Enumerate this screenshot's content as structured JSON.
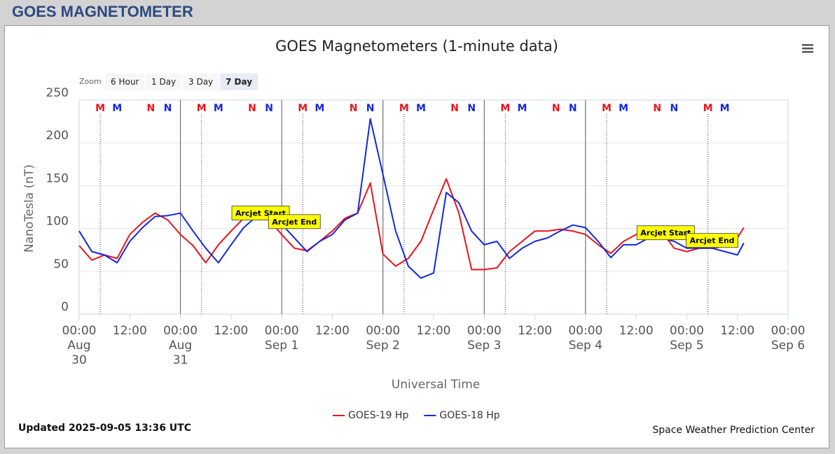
{
  "header": {
    "title": "GOES MAGNETOMETER"
  },
  "zoom": {
    "label": "Zoom",
    "buttons": [
      "6 Hour",
      "1 Day",
      "3 Day",
      "7 Day"
    ],
    "selected_index": 3
  },
  "chart_data": {
    "type": "line",
    "title": "GOES Magnetometers (1-minute data)",
    "xlabel": "Universal Time",
    "ylabel": "NanoTesla (nT)",
    "x": [
      "Aug 30 00:00",
      "Aug 30 03:00",
      "Aug 30 06:00",
      "Aug 30 09:00",
      "Aug 30 12:00",
      "Aug 30 15:00",
      "Aug 30 18:00",
      "Aug 30 21:00",
      "Aug 31 00:00",
      "Aug 31 03:00",
      "Aug 31 06:00",
      "Aug 31 09:00",
      "Aug 31 12:00",
      "Aug 31 15:00",
      "Aug 31 18:00",
      "Aug 31 21:00",
      "Sep 1 00:00",
      "Sep 1 03:00",
      "Sep 1 06:00",
      "Sep 1 09:00",
      "Sep 1 12:00",
      "Sep 1 15:00",
      "Sep 1 18:00",
      "Sep 1 21:00",
      "Sep 2 00:00",
      "Sep 2 03:00",
      "Sep 2 06:00",
      "Sep 2 09:00",
      "Sep 2 12:00",
      "Sep 2 15:00",
      "Sep 2 18:00",
      "Sep 2 21:00",
      "Sep 3 00:00",
      "Sep 3 03:00",
      "Sep 3 06:00",
      "Sep 3 09:00",
      "Sep 3 12:00",
      "Sep 3 15:00",
      "Sep 3 18:00",
      "Sep 3 21:00",
      "Sep 4 00:00",
      "Sep 4 03:00",
      "Sep 4 06:00",
      "Sep 4 09:00",
      "Sep 4 12:00",
      "Sep 4 15:00",
      "Sep 4 18:00",
      "Sep 4 21:00",
      "Sep 5 00:00",
      "Sep 5 03:00",
      "Sep 5 06:00",
      "Sep 5 09:00",
      "Sep 5 12:00",
      "Sep 5 13:30"
    ],
    "series": [
      {
        "name": "GOES-19 Hp",
        "color": "#e8141c",
        "values": [
          80,
          63,
          69,
          65,
          93,
          107,
          118,
          110,
          93,
          80,
          60,
          81,
          97,
          112,
          114,
          110,
          93,
          77,
          74,
          85,
          97,
          112,
          118,
          153,
          70,
          56,
          65,
          85,
          122,
          158,
          118,
          52,
          52,
          54,
          73,
          85,
          97,
          97,
          99,
          97,
          93,
          81,
          71,
          85,
          93,
          97,
          97,
          77,
          73,
          77,
          77,
          79,
          89,
          101
        ]
      },
      {
        "name": "GOES-18 Hp",
        "color": "#1428dc",
        "values": [
          97,
          73,
          69,
          60,
          85,
          101,
          114,
          115,
          118,
          97,
          77,
          60,
          81,
          101,
          114,
          114,
          105,
          89,
          73,
          85,
          93,
          110,
          118,
          228,
          163,
          97,
          56,
          42,
          48,
          142,
          130,
          97,
          81,
          85,
          65,
          77,
          85,
          89,
          97,
          104,
          101,
          85,
          66,
          81,
          81,
          89,
          89,
          85,
          77,
          77,
          77,
          73,
          69,
          83
        ]
      }
    ],
    "xlim": [
      "Aug 30 00:00",
      "Sep 6 00:00"
    ],
    "xticks": [
      {
        "value": "Aug 30 00:00",
        "label": "00:00\nAug\n30"
      },
      {
        "value": "Aug 30 12:00",
        "label": "12:00"
      },
      {
        "value": "Aug 31 00:00",
        "label": "00:00\nAug\n31"
      },
      {
        "value": "Aug 31 12:00",
        "label": "12:00"
      },
      {
        "value": "Sep 1 00:00",
        "label": "00:00\nSep 1"
      },
      {
        "value": "Sep 1 12:00",
        "label": "12:00"
      },
      {
        "value": "Sep 2 00:00",
        "label": "00:00\nSep 2"
      },
      {
        "value": "Sep 2 12:00",
        "label": "12:00"
      },
      {
        "value": "Sep 3 00:00",
        "label": "00:00\nSep 3"
      },
      {
        "value": "Sep 3 12:00",
        "label": "12:00"
      },
      {
        "value": "Sep 4 00:00",
        "label": "00:00\nSep 4"
      },
      {
        "value": "Sep 4 12:00",
        "label": "12:00"
      },
      {
        "value": "Sep 5 00:00",
        "label": "00:00\nSep 5"
      },
      {
        "value": "Sep 5 12:00",
        "label": "12:00"
      },
      {
        "value": "Sep 6 00:00",
        "label": "00:00\nSep 6"
      }
    ],
    "ylim": [
      0,
      250
    ],
    "yticks": [
      0,
      50,
      100,
      150,
      200,
      250
    ],
    "grid": true,
    "x_plot_lines": [
      "Aug 31 00:00",
      "Sep 1 00:00",
      "Sep 2 00:00",
      "Sep 3 00:00",
      "Sep 4 00:00"
    ],
    "markers": [
      {
        "label": "M",
        "color": "#e8141c",
        "x": "Aug 30 05:00",
        "line": "dotted"
      },
      {
        "label": "M",
        "color": "#1428dc",
        "x": "Aug 30 09:00"
      },
      {
        "label": "N",
        "color": "#e8141c",
        "x": "Aug 30 17:00"
      },
      {
        "label": "N",
        "color": "#1428dc",
        "x": "Aug 30 21:00"
      },
      {
        "label": "M",
        "color": "#e8141c",
        "x": "Aug 31 05:00",
        "line": "dotted"
      },
      {
        "label": "M",
        "color": "#1428dc",
        "x": "Aug 31 09:00"
      },
      {
        "label": "N",
        "color": "#e8141c",
        "x": "Aug 31 17:00"
      },
      {
        "label": "N",
        "color": "#1428dc",
        "x": "Aug 31 21:00"
      },
      {
        "label": "M",
        "color": "#e8141c",
        "x": "Sep 1 05:00",
        "line": "dotted"
      },
      {
        "label": "M",
        "color": "#1428dc",
        "x": "Sep 1 09:00"
      },
      {
        "label": "N",
        "color": "#e8141c",
        "x": "Sep 1 17:00"
      },
      {
        "label": "N",
        "color": "#1428dc",
        "x": "Sep 1 21:00"
      },
      {
        "label": "M",
        "color": "#e8141c",
        "x": "Sep 2 05:00",
        "line": "dotted"
      },
      {
        "label": "M",
        "color": "#1428dc",
        "x": "Sep 2 09:00"
      },
      {
        "label": "N",
        "color": "#e8141c",
        "x": "Sep 2 17:00"
      },
      {
        "label": "N",
        "color": "#1428dc",
        "x": "Sep 2 21:00"
      },
      {
        "label": "M",
        "color": "#e8141c",
        "x": "Sep 3 05:00",
        "line": "dotted"
      },
      {
        "label": "M",
        "color": "#1428dc",
        "x": "Sep 3 09:00"
      },
      {
        "label": "N",
        "color": "#e8141c",
        "x": "Sep 3 17:00"
      },
      {
        "label": "N",
        "color": "#1428dc",
        "x": "Sep 3 21:00"
      },
      {
        "label": "M",
        "color": "#e8141c",
        "x": "Sep 4 05:00",
        "line": "dotted"
      },
      {
        "label": "M",
        "color": "#1428dc",
        "x": "Sep 4 09:00"
      },
      {
        "label": "N",
        "color": "#e8141c",
        "x": "Sep 4 17:00"
      },
      {
        "label": "N",
        "color": "#1428dc",
        "x": "Sep 4 21:00"
      },
      {
        "label": "M",
        "color": "#e8141c",
        "x": "Sep 5 05:00",
        "line": "dotted"
      },
      {
        "label": "M",
        "color": "#1428dc",
        "x": "Sep 5 09:00"
      }
    ],
    "annotations": [
      {
        "text": "Arcjet Start",
        "x": "Aug 31 19:00",
        "y": 118
      },
      {
        "text": "Arcjet End",
        "x": "Sep 1 03:00",
        "y": 108
      },
      {
        "text": "Arcjet Start",
        "x": "Sep 4 19:00",
        "y": 95
      },
      {
        "text": "Arcjet End",
        "x": "Sep 5 06:00",
        "y": 86
      }
    ],
    "legend": "bottom"
  },
  "updated": "Updated 2025-09-05 13:36 UTC",
  "credits": "Space Weather Prediction Center"
}
